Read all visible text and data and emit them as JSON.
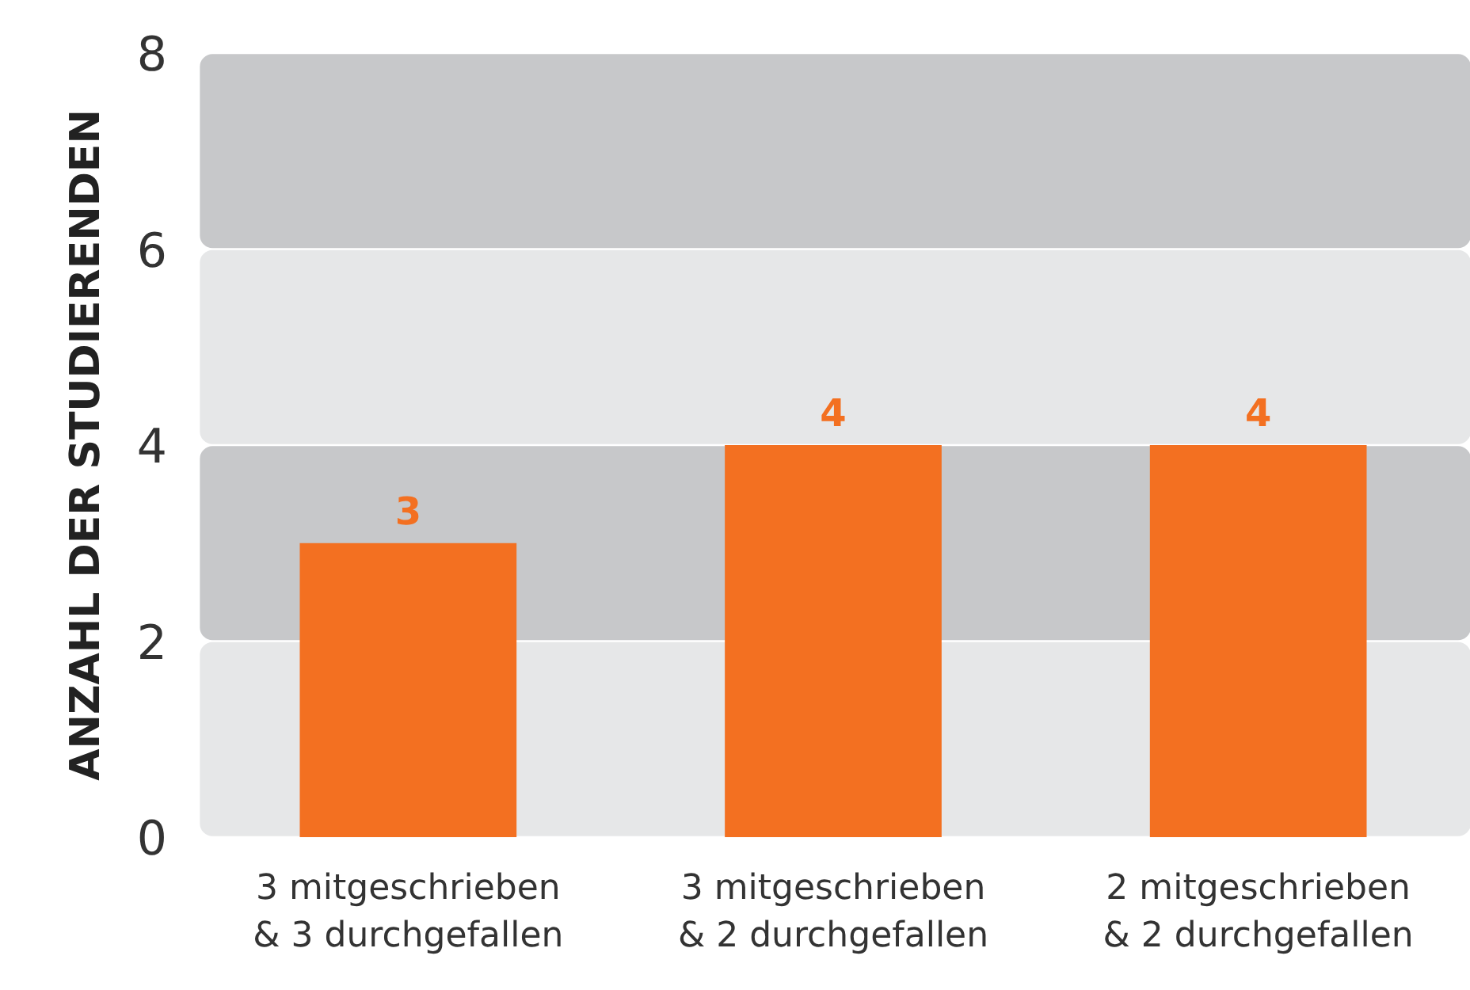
{
  "chart_data": {
    "type": "bar",
    "ylabel": "ANZAHL DER STUDIERENDEN",
    "categories": [
      "3 mitgeschrieben\n& 3 durchgefallen",
      "3 mitgeschrieben\n& 2 durchgefallen",
      "2 mitgeschrieben\n& 2 durchgefallen"
    ],
    "values": [
      3,
      4,
      4
    ],
    "color": "#f37021",
    "data_labels": true,
    "ylim": [
      0,
      8
    ],
    "yticks": [
      0,
      2,
      4,
      6,
      8
    ],
    "grid": false,
    "bands": [
      {
        "axis": "y",
        "from": 0,
        "to": 2,
        "color": "#e6e7e8"
      },
      {
        "axis": "y",
        "from": 2,
        "to": 4,
        "color": "#c7c8ca"
      },
      {
        "axis": "y",
        "from": 4,
        "to": 6,
        "color": "#e6e7e8"
      },
      {
        "axis": "y",
        "from": 6,
        "to": 8,
        "color": "#c7c8ca"
      }
    ]
  }
}
